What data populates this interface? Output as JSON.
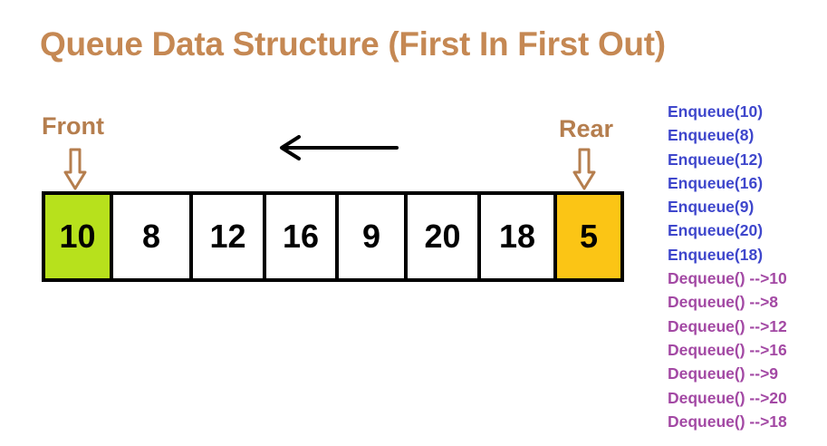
{
  "title": "Queue Data Structure (First In First Out)",
  "front_label": "Front",
  "rear_label": "Rear",
  "queue": [
    "10",
    "8",
    "12",
    "16",
    "9",
    "20",
    "18",
    "5"
  ],
  "operations": [
    {
      "text": "Enqueue(10)",
      "type": "enqueue"
    },
    {
      "text": "Enqueue(8)",
      "type": "enqueue"
    },
    {
      "text": "Enqueue(12)",
      "type": "enqueue"
    },
    {
      "text": "Enqueue(16)",
      "type": "enqueue"
    },
    {
      "text": "Enqueue(9)",
      "type": "enqueue"
    },
    {
      "text": "Enqueue(20)",
      "type": "enqueue"
    },
    {
      "text": "Enqueue(18)",
      "type": "enqueue"
    },
    {
      "text": "Dequeue() -->10",
      "type": "dequeue"
    },
    {
      "text": "Dequeue() -->8",
      "type": "dequeue"
    },
    {
      "text": "Dequeue() -->12",
      "type": "dequeue"
    },
    {
      "text": "Dequeue() -->16",
      "type": "dequeue"
    },
    {
      "text": "Dequeue() -->9",
      "type": "dequeue"
    },
    {
      "text": "Dequeue() -->20",
      "type": "dequeue"
    },
    {
      "text": "Dequeue() -->18",
      "type": "dequeue"
    }
  ],
  "colors": {
    "title": "#c58853",
    "pointer": "#b57e4e",
    "front_cell": "#b7e11c",
    "rear_cell": "#fbc515",
    "enqueue_text": "#3f47cc",
    "dequeue_text": "#a349a4"
  },
  "icons": {
    "front_pointer": "down-arrow-icon",
    "rear_pointer": "down-arrow-icon",
    "direction": "left-arrow-icon"
  }
}
